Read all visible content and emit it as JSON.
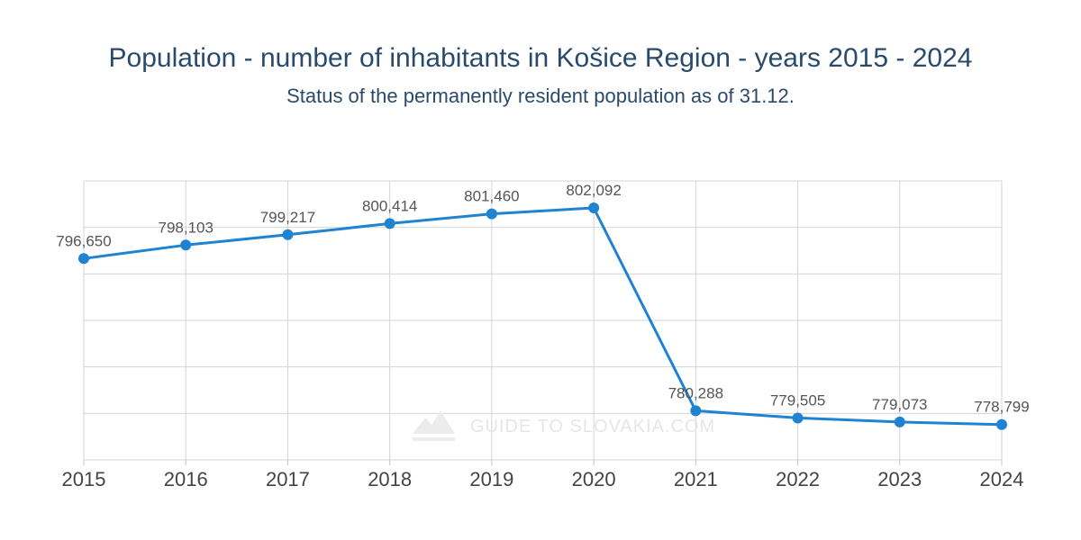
{
  "chart_data": {
    "type": "line",
    "title": "Population - number of inhabitants in Košice Region - years 2015 - 2024",
    "subtitle": "Status of the permanently resident population as of 31.12.",
    "xlabel": "",
    "ylabel": "",
    "categories": [
      "2015",
      "2016",
      "2017",
      "2018",
      "2019",
      "2020",
      "2021",
      "2022",
      "2023",
      "2024"
    ],
    "series": [
      {
        "values": [
          796650,
          798103,
          799217,
          800414,
          801460,
          802092,
          780288,
          779505,
          779073,
          778799
        ],
        "labels": [
          "796,650",
          "798,103",
          "799,217",
          "800,414",
          "801,460",
          "802,092",
          "780,288",
          "779,505",
          "779,073",
          "778,799"
        ],
        "color": "#1f83d1"
      }
    ],
    "ylim": [
      775000,
      805000
    ],
    "ygrid_step": 5000,
    "grid": true,
    "legend": "none",
    "watermark": "GUIDE TO SLOVAKIA.COM"
  }
}
